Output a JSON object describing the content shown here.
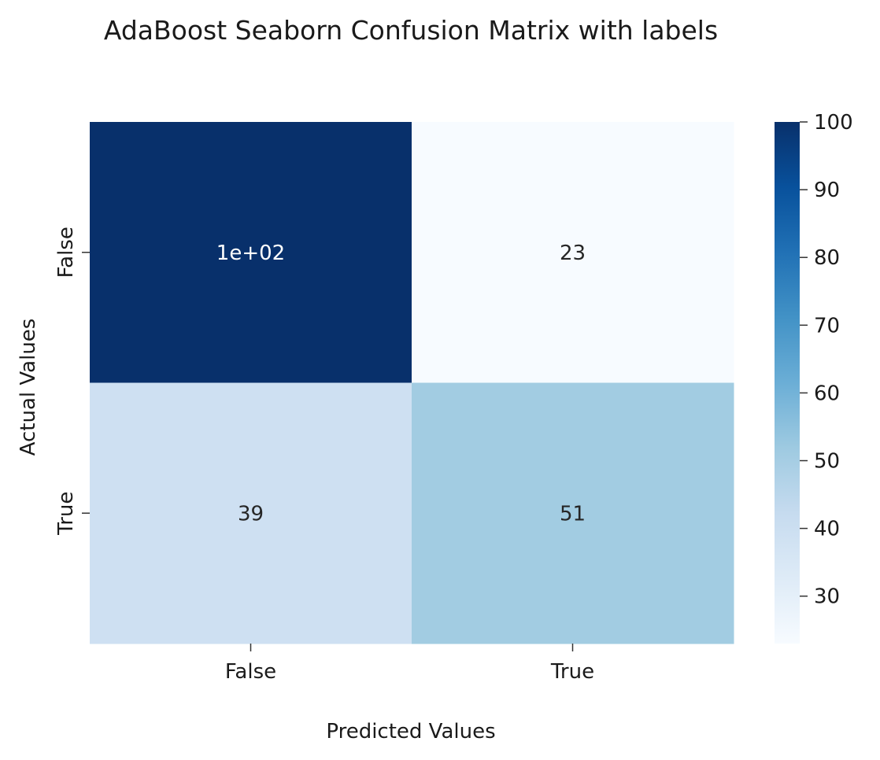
{
  "chart_data": {
    "type": "heatmap",
    "title": "AdaBoost Seaborn Confusion Matrix with labels",
    "xlabel": "Predicted Values",
    "ylabel": "Actual Values",
    "x_categories": [
      "False",
      "True"
    ],
    "y_categories": [
      "False",
      "True"
    ],
    "values": [
      [
        100,
        23
      ],
      [
        39,
        51
      ]
    ],
    "annotations": [
      [
        "1e+02",
        "23"
      ],
      [
        "39",
        "51"
      ]
    ],
    "colormap": "Blues",
    "colorbar": {
      "range": [
        23,
        100
      ],
      "ticks": [
        30,
        40,
        50,
        60,
        70,
        80,
        90,
        100
      ],
      "tick_labels": [
        "30",
        "40",
        "50",
        "60",
        "70",
        "80",
        "90",
        "100"
      ]
    },
    "grid": false,
    "legend": "colorbar at right"
  }
}
